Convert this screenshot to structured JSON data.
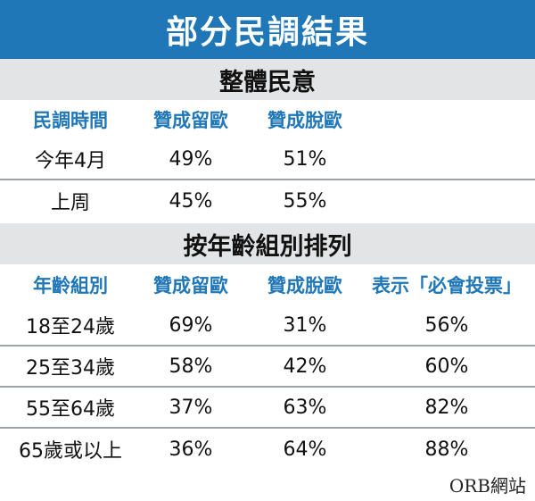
{
  "title": "部分民調結果",
  "source": "ORB網站",
  "chart_data": {
    "type": "table",
    "sections": [
      {
        "title": "整體民意",
        "columns": [
          "民調時間",
          "贊成留歐",
          "贊成脫歐"
        ],
        "rows": [
          [
            "今年4月",
            "49%",
            "51%"
          ],
          [
            "上周",
            "45%",
            "55%"
          ]
        ]
      },
      {
        "title": "按年齡組別排列",
        "columns": [
          "年齡組別",
          "贊成留歐",
          "贊成脫歐",
          "表示「必會投票」"
        ],
        "rows": [
          [
            "18至24歲",
            "69%",
            "31%",
            "56%"
          ],
          [
            "25至34歲",
            "58%",
            "42%",
            "60%"
          ],
          [
            "55至64歲",
            "37%",
            "63%",
            "82%"
          ],
          [
            "65歲或以上",
            "36%",
            "64%",
            "88%"
          ]
        ]
      }
    ]
  }
}
